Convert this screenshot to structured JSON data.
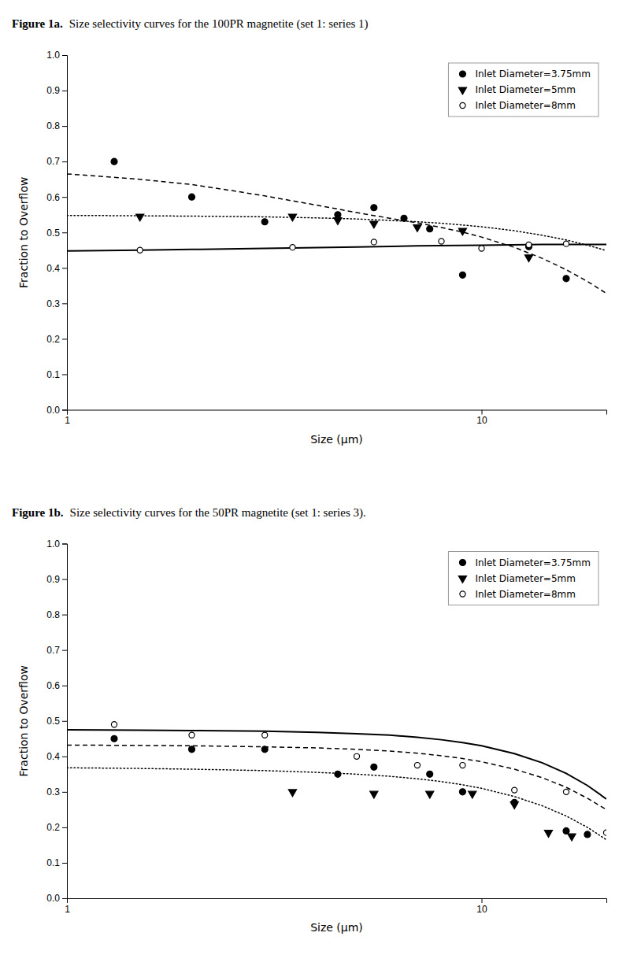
{
  "chart_data": [
    {
      "type": "scatter",
      "title": "Figure 1a.",
      "subtitle": "Size selectivity curves for the 100PR magnetite (set 1: series 1)",
      "x_label": "Size (μm)",
      "y_label": "Fraction to Overflow",
      "log": "x",
      "xlim": [
        1,
        20
      ],
      "xticks": [
        1,
        10
      ],
      "ylim": [
        0,
        1
      ],
      "yticks": [
        {
          "value": 0,
          "label": "0.0"
        },
        0.1,
        0.2,
        0.3,
        0.4,
        0.5,
        0.6,
        0.7,
        0.8,
        0.9,
        {
          "value": 1,
          "label": "1.0"
        }
      ],
      "grid": false,
      "legend": "upper right",
      "series": [
        {
          "name": "Inlet Diameter=3.75mm",
          "type": "scatter",
          "marker": "circle",
          "color": "black",
          "x": [
            1.3,
            2.0,
            3.0,
            4.5,
            5.5,
            6.5,
            7.5,
            9.0,
            13.0,
            16.0
          ],
          "values": [
            0.7,
            0.6,
            0.53,
            0.55,
            0.57,
            0.54,
            0.51,
            0.38,
            0.46,
            0.37
          ]
        },
        {
          "name": "Inlet Diameter=5mm",
          "type": "scatter",
          "marker": "triangle_down",
          "color": "black",
          "x": [
            1.5,
            3.5,
            4.5,
            5.5,
            7.0,
            9.0,
            13.0
          ],
          "values": [
            0.545,
            0.545,
            0.535,
            0.525,
            0.515,
            0.505,
            0.43
          ]
        },
        {
          "name": "Inlet Diameter=8mm",
          "type": "scatter",
          "marker": "open_circle",
          "color": "black",
          "x": [
            1.5,
            3.5,
            5.5,
            8.0,
            10.0,
            13.0,
            16.0
          ],
          "values": [
            0.45,
            0.458,
            0.473,
            0.475,
            0.455,
            0.465,
            0.468
          ]
        },
        {
          "type": "line",
          "line_style": "dashed",
          "color": "black",
          "x": [
            1.0,
            1.5,
            2.0,
            2.5,
            3.0,
            4.0,
            5.0,
            6.0,
            7.0,
            8.0,
            9.0,
            10.0,
            12.0,
            14.0,
            16.0,
            18.0,
            20.0
          ],
          "values": [
            0.665,
            0.65,
            0.635,
            0.618,
            0.603,
            0.577,
            0.556,
            0.54,
            0.527,
            0.514,
            0.501,
            0.487,
            0.458,
            0.427,
            0.395,
            0.362,
            0.328
          ]
        },
        {
          "type": "line",
          "line_style": "dotted",
          "color": "black",
          "x": [
            1.0,
            1.5,
            2.0,
            3.0,
            4.0,
            5.0,
            6.0,
            7.0,
            8.0,
            9.0,
            10.0,
            12.0,
            14.0,
            16.0,
            18.0,
            20.0
          ],
          "values": [
            0.548,
            0.547,
            0.546,
            0.544,
            0.541,
            0.538,
            0.534,
            0.53,
            0.526,
            0.521,
            0.516,
            0.505,
            0.492,
            0.479,
            0.464,
            0.449
          ]
        },
        {
          "type": "line",
          "line_style": "solid",
          "color": "black",
          "x": [
            1.0,
            1.5,
            2.0,
            3.0,
            5.0,
            7.0,
            10.0,
            14.0,
            18.0,
            20.0
          ],
          "values": [
            0.448,
            0.45,
            0.452,
            0.455,
            0.459,
            0.462,
            0.464,
            0.466,
            0.466,
            0.466
          ]
        }
      ]
    },
    {
      "type": "scatter",
      "title": "Figure 1b.",
      "subtitle": "Size selectivity curves for the 50PR magnetite (set 1: series 3).",
      "x_label": "Size (μm)",
      "y_label": "Fraction to Overflow",
      "log": "x",
      "xlim": [
        1,
        20
      ],
      "xticks": [
        1,
        10
      ],
      "ylim": [
        0,
        1
      ],
      "yticks": [
        {
          "value": 0,
          "label": "0.0"
        },
        0.1,
        0.2,
        0.3,
        0.4,
        0.5,
        0.6,
        0.7,
        0.8,
        0.9,
        {
          "value": 1,
          "label": "1.0"
        }
      ],
      "grid": false,
      "legend": "upper right",
      "series": [
        {
          "name": "Inlet Diameter=3.75mm",
          "type": "scatter",
          "marker": "circle",
          "color": "black",
          "x": [
            1.3,
            2.0,
            3.0,
            4.5,
            5.5,
            7.5,
            9.0,
            12.0,
            16.0,
            18.0
          ],
          "values": [
            0.45,
            0.42,
            0.42,
            0.35,
            0.37,
            0.35,
            0.3,
            0.27,
            0.19,
            0.18
          ]
        },
        {
          "name": "Inlet Diameter=5mm",
          "type": "scatter",
          "marker": "triangle_down",
          "color": "black",
          "x": [
            3.5,
            5.5,
            7.5,
            9.5,
            12.0,
            14.5,
            16.5
          ],
          "values": [
            0.3,
            0.295,
            0.295,
            0.295,
            0.265,
            0.185,
            0.175
          ]
        },
        {
          "name": "Inlet Diameter=8mm",
          "type": "scatter",
          "marker": "open_circle",
          "color": "black",
          "x": [
            1.3,
            2.0,
            3.0,
            5.0,
            7.0,
            9.0,
            12.0,
            16.0,
            20.0
          ],
          "values": [
            0.49,
            0.46,
            0.46,
            0.4,
            0.375,
            0.375,
            0.305,
            0.3,
            0.185
          ]
        },
        {
          "type": "line",
          "line_style": "dashed",
          "color": "black",
          "x": [
            1.0,
            1.5,
            2.0,
            3.0,
            4.0,
            5.0,
            6.0,
            7.0,
            8.0,
            9.0,
            10.0,
            12.0,
            14.0,
            16.0,
            18.0,
            20.0
          ],
          "values": [
            0.432,
            0.431,
            0.43,
            0.427,
            0.424,
            0.42,
            0.415,
            0.409,
            0.402,
            0.394,
            0.385,
            0.364,
            0.34,
            0.313,
            0.282,
            0.25
          ]
        },
        {
          "type": "line",
          "line_style": "dotted",
          "color": "black",
          "x": [
            1.0,
            1.5,
            2.0,
            3.0,
            4.0,
            5.0,
            6.0,
            7.0,
            8.0,
            9.0,
            10.0,
            12.0,
            14.0,
            16.0,
            18.0,
            20.0
          ],
          "values": [
            0.368,
            0.366,
            0.364,
            0.36,
            0.355,
            0.35,
            0.344,
            0.337,
            0.329,
            0.32,
            0.31,
            0.287,
            0.261,
            0.232,
            0.2,
            0.165
          ]
        },
        {
          "type": "line",
          "line_style": "solid",
          "color": "black",
          "x": [
            1.0,
            1.5,
            2.0,
            3.0,
            4.0,
            5.0,
            6.0,
            7.0,
            8.0,
            9.0,
            10.0,
            12.0,
            14.0,
            16.0,
            18.0,
            20.0
          ],
          "values": [
            0.475,
            0.474,
            0.473,
            0.471,
            0.468,
            0.464,
            0.46,
            0.454,
            0.447,
            0.439,
            0.43,
            0.408,
            0.382,
            0.352,
            0.318,
            0.28
          ]
        }
      ]
    }
  ]
}
